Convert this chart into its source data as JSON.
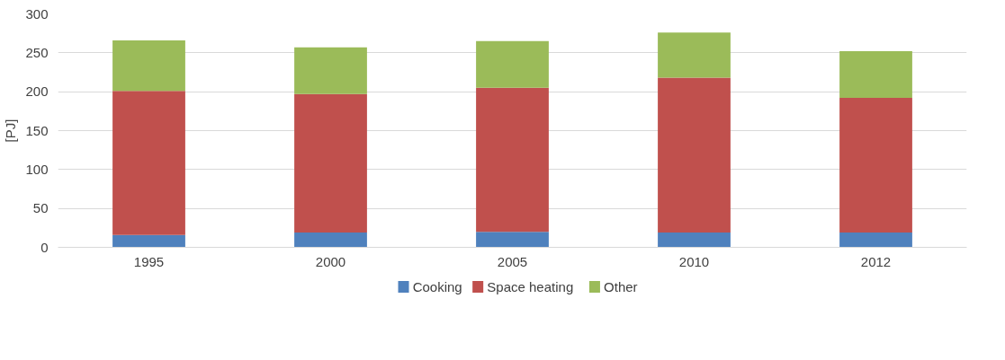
{
  "chart_data": {
    "type": "bar",
    "stacked": true,
    "ylabel": "[PJ]",
    "categories": [
      "1995",
      "2000",
      "2005",
      "2010",
      "2012"
    ],
    "series": [
      {
        "name": "Cooking",
        "color": "#4f81bd",
        "values": [
          16,
          19,
          20,
          19,
          19
        ]
      },
      {
        "name": "Space heating",
        "color": "#c0504d",
        "values": [
          185,
          178,
          185,
          199,
          173
        ]
      },
      {
        "name": "Other",
        "color": "#9bbb59",
        "values": [
          65,
          60,
          60,
          58,
          60
        ]
      }
    ],
    "ylim": [
      0,
      300
    ],
    "yticks": [
      0,
      50,
      100,
      150,
      200,
      250,
      300
    ],
    "grid": "y",
    "legend": "bottom"
  }
}
